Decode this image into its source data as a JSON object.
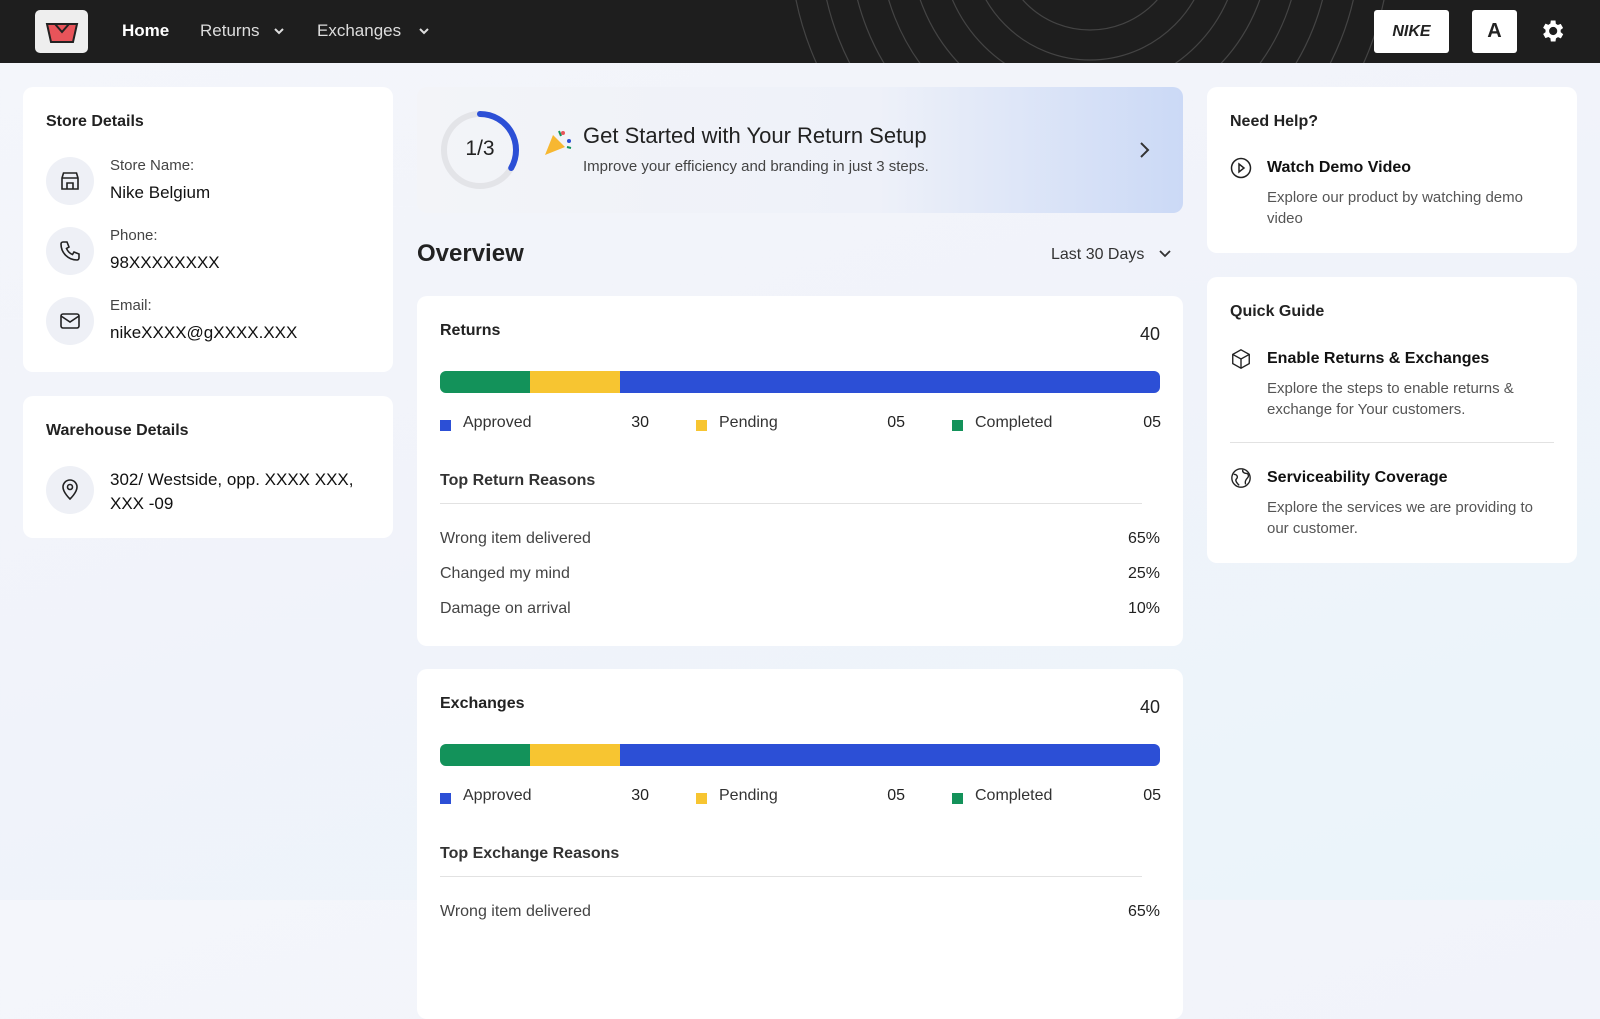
{
  "nav": {
    "links": [
      "Home",
      "Returns",
      "Exchanges"
    ],
    "brand": "NIKE",
    "avatar": "A"
  },
  "store": {
    "title": "Store Details",
    "fields": [
      {
        "label": "Store Name:",
        "value": "Nike Belgium"
      },
      {
        "label": "Phone:",
        "value": "98XXXXXXXX"
      },
      {
        "label": "Email:",
        "value": "nikeXXXX@gXXXX.XXX"
      }
    ]
  },
  "warehouse": {
    "title": "Warehouse Details",
    "address": "302/ Westside, opp. XXXX XXX, XXX -09"
  },
  "setup": {
    "progress": "1/3",
    "title": "Get Started with Your Return Setup",
    "subtitle": "Improve your efficiency and branding in just 3 steps."
  },
  "overview": {
    "title": "Overview",
    "period": "Last 30 Days",
    "cards": [
      {
        "title": "Returns",
        "total": 40,
        "stats": [
          {
            "name": "Approved",
            "value": 30,
            "label": "30",
            "color": "#2c4fd6"
          },
          {
            "name": "Pending",
            "value": 5,
            "label": "05",
            "color": "#f7c531"
          },
          {
            "name": "Completed",
            "value": 5,
            "label": "05",
            "color": "#13925a"
          }
        ],
        "reasons_title": "Top Return Reasons",
        "reasons": [
          [
            "Wrong item delivered",
            "65%"
          ],
          [
            "Changed my mind",
            "25%"
          ],
          [
            "Damage on arrival",
            "10%"
          ]
        ]
      },
      {
        "title": "Exchanges",
        "total": 40,
        "stats": [
          {
            "name": "Approved",
            "value": 30,
            "label": "30",
            "color": "#2c4fd6"
          },
          {
            "name": "Pending",
            "value": 5,
            "label": "05",
            "color": "#f7c531"
          },
          {
            "name": "Completed",
            "value": 5,
            "label": "05",
            "color": "#13925a"
          }
        ],
        "reasons_title": "Top Exchange Reasons",
        "reasons": [
          [
            "Wrong item delivered",
            "65%"
          ]
        ]
      }
    ]
  },
  "help": {
    "title": "Need Help?",
    "items": [
      {
        "title": "Watch Demo Video",
        "text": "Explore our product by watching demo video"
      }
    ]
  },
  "guide": {
    "title": "Quick Guide",
    "items": [
      {
        "title": "Enable Returns & Exchanges",
        "text": "Explore the steps to enable returns & exchange for Your customers."
      },
      {
        "title": "Serviceability Coverage",
        "text": "Explore the services we are providing to our customer."
      }
    ]
  }
}
